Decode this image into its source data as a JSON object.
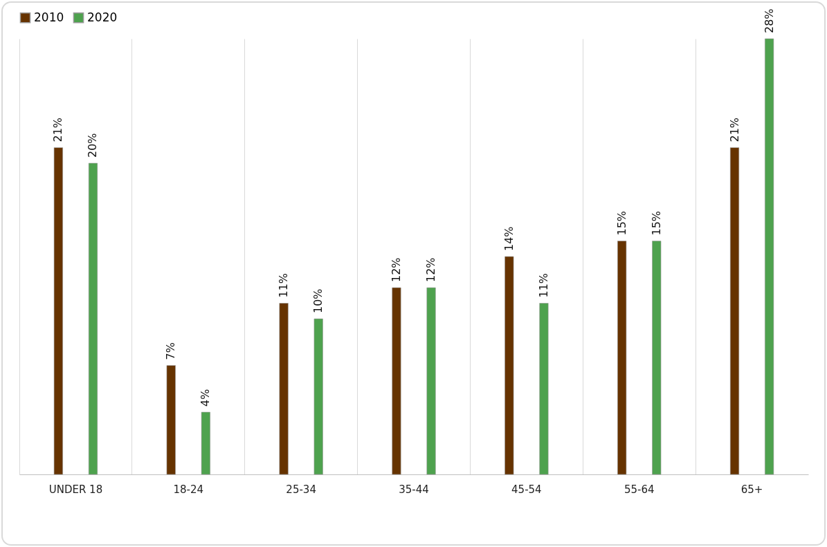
{
  "chart_data": {
    "type": "bar",
    "categories": [
      "UNDER 18",
      "18-24",
      "25-34",
      "35-44",
      "45-54",
      "55-64",
      "65+"
    ],
    "series": [
      {
        "name": "2010",
        "color": "#663300",
        "values": [
          21,
          7,
          11,
          12,
          14,
          15,
          21
        ],
        "value_labels": [
          "21%",
          "7%",
          "11%",
          "12%",
          "14%",
          "15%",
          "21%"
        ]
      },
      {
        "name": "2020",
        "color": "#4ea24e",
        "values": [
          20,
          4,
          10,
          12,
          11,
          15,
          28
        ],
        "value_labels": [
          "20%",
          "4%",
          "10%",
          "12%",
          "11%",
          "15%",
          "28%"
        ]
      }
    ],
    "grid": "x",
    "legend": "top"
  }
}
